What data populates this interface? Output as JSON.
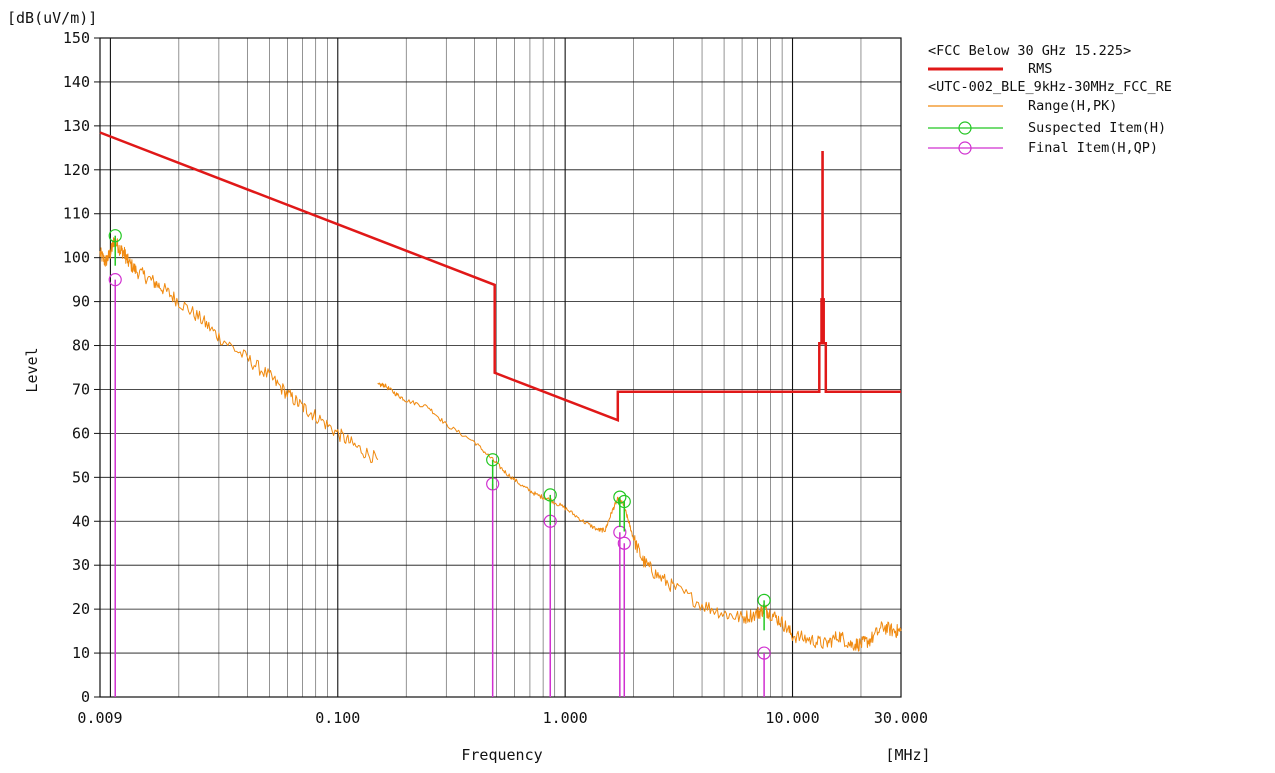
{
  "chart_data": {
    "type": "line",
    "x_scale": "log",
    "y_scale": "linear",
    "xlim": [
      0.009,
      30
    ],
    "ylim": [
      0,
      150
    ],
    "grid": true,
    "legend_position": "right",
    "y_unit_label": "[dB(uV/m)]",
    "ylabel": "Level",
    "xlabel": "Frequency",
    "x_unit_label": "[MHz]",
    "x_ticks": [
      {
        "value": 0.009,
        "label": "0.009"
      },
      {
        "value": 0.1,
        "label": "0.100"
      },
      {
        "value": 1,
        "label": "1.000"
      },
      {
        "value": 10,
        "label": "10.000"
      },
      {
        "value": 30,
        "label": "30.000"
      }
    ],
    "y_ticks": [
      0,
      10,
      20,
      30,
      40,
      50,
      60,
      70,
      80,
      90,
      100,
      110,
      120,
      130,
      140,
      150
    ],
    "legend": {
      "group1_title": "<FCC Below 30 GHz 15.225>",
      "group2_title": "<UTC-002_BLE_9kHz-30MHz_FCC_RE",
      "rms": "RMS",
      "range": "Range(H,PK)",
      "suspected": "Suspected Item(H)",
      "final": "Final Item(H,QP)"
    },
    "colors": {
      "limit": "#e01818",
      "range": "#f08a10",
      "suspected": "#22c722",
      "final": "#d030d0",
      "grid": "#111111"
    },
    "limit_line": {
      "name": "RMS",
      "points": [
        [
          0.009,
          128.5
        ],
        [
          0.49,
          93.8
        ],
        [
          0.49,
          73.8
        ],
        [
          1.705,
          63.0
        ],
        [
          1.705,
          69.5
        ],
        [
          13.11,
          69.5
        ],
        [
          13.11,
          80.5
        ],
        [
          13.41,
          80.5
        ],
        [
          13.41,
          90.5
        ],
        [
          13.553,
          90.5
        ],
        [
          13.553,
          124.0
        ],
        [
          13.567,
          124.0
        ],
        [
          13.567,
          90.5
        ],
        [
          13.71,
          90.5
        ],
        [
          13.71,
          80.5
        ],
        [
          14.01,
          80.5
        ],
        [
          14.01,
          69.5
        ],
        [
          30,
          69.5
        ]
      ]
    },
    "range_series": {
      "name": "Range(H,PK)",
      "segments": [
        [
          [
            0.009,
            101
          ],
          [
            0.0095,
            99
          ],
          [
            0.01,
            101
          ],
          [
            0.0104,
            104
          ],
          [
            0.011,
            102
          ],
          [
            0.0115,
            101
          ],
          [
            0.012,
            99
          ],
          [
            0.013,
            97
          ],
          [
            0.015,
            95
          ],
          [
            0.017,
            93
          ],
          [
            0.02,
            90
          ],
          [
            0.025,
            86
          ],
          [
            0.03,
            82
          ],
          [
            0.04,
            77
          ],
          [
            0.05,
            73
          ],
          [
            0.06,
            69
          ],
          [
            0.07,
            66
          ],
          [
            0.08,
            64
          ],
          [
            0.1,
            60
          ],
          [
            0.12,
            57
          ],
          [
            0.15,
            54
          ]
        ],
        [
          [
            0.15,
            71
          ],
          [
            0.16,
            71
          ],
          [
            0.18,
            69
          ],
          [
            0.2,
            67.5
          ],
          [
            0.25,
            66
          ],
          [
            0.3,
            62
          ],
          [
            0.4,
            58
          ],
          [
            0.48,
            54
          ],
          [
            0.55,
            51
          ],
          [
            0.65,
            48
          ],
          [
            0.75,
            46
          ],
          [
            0.85,
            45
          ],
          [
            1.0,
            43
          ],
          [
            1.2,
            40
          ],
          [
            1.4,
            38
          ],
          [
            1.5,
            38
          ],
          [
            1.6,
            42
          ],
          [
            1.7,
            45
          ],
          [
            1.8,
            44
          ],
          [
            1.9,
            40
          ],
          [
            2.0,
            36
          ],
          [
            2.2,
            31
          ],
          [
            2.5,
            28
          ],
          [
            3.0,
            25
          ],
          [
            4.0,
            21
          ],
          [
            5.0,
            19
          ],
          [
            6.0,
            18
          ],
          [
            7.0,
            19
          ],
          [
            7.5,
            20
          ],
          [
            8.0,
            19
          ],
          [
            9.0,
            17
          ],
          [
            10.0,
            14
          ],
          [
            12.0,
            13
          ],
          [
            14.0,
            12
          ],
          [
            16.0,
            14
          ],
          [
            18.0,
            12
          ],
          [
            20.0,
            12
          ],
          [
            22.0,
            13
          ],
          [
            25.0,
            16
          ],
          [
            28.0,
            15
          ],
          [
            30.0,
            15
          ]
        ]
      ]
    },
    "suspected_items": [
      {
        "frequency": 0.0105,
        "level": 105
      },
      {
        "frequency": 0.48,
        "level": 54
      },
      {
        "frequency": 0.86,
        "level": 46
      },
      {
        "frequency": 1.74,
        "level": 45.5
      },
      {
        "frequency": 1.82,
        "level": 44.5
      },
      {
        "frequency": 7.5,
        "level": 22
      }
    ],
    "final_items": [
      {
        "frequency": 0.0105,
        "level": 95
      },
      {
        "frequency": 0.48,
        "level": 48.5
      },
      {
        "frequency": 0.86,
        "level": 40
      },
      {
        "frequency": 1.74,
        "level": 37.5
      },
      {
        "frequency": 1.82,
        "level": 35
      },
      {
        "frequency": 7.5,
        "level": 10
      }
    ]
  }
}
